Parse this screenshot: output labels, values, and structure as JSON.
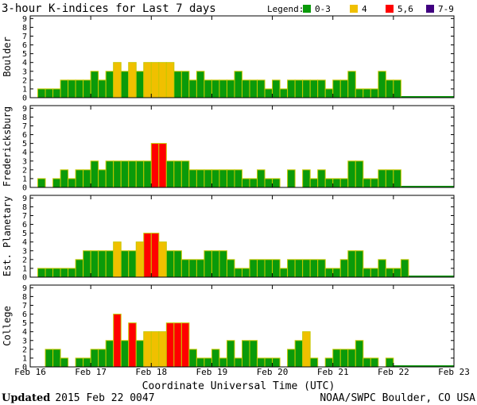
{
  "chart_data": {
    "type": "bar",
    "title": "3-hour K-indices for Last 7 days",
    "legend": {
      "label": "Legend:",
      "entries": [
        {
          "label": "0-3",
          "color": "#0a9a0a"
        },
        {
          "label": "4",
          "color": "#f0c000"
        },
        {
          "label": "5,6",
          "color": "#ff0000"
        },
        {
          "label": "7-9",
          "color": "#400080"
        }
      ]
    },
    "bar_outline_color": "#c8c800",
    "xlabel": "Coordinate Universal Time (UTC)",
    "x_ticks": [
      "Feb 16",
      "Feb 17",
      "Feb 18",
      "Feb 19",
      "Feb 20",
      "Feb 21",
      "Feb 22",
      "Feb 23"
    ],
    "ylim": [
      0,
      9
    ],
    "y_ticks": [
      0,
      1,
      2,
      3,
      4,
      5,
      6,
      7,
      8,
      9
    ],
    "interval_hours": 3,
    "series": [
      {
        "name": "Boulder",
        "values": [
          0,
          1,
          1,
          1,
          2,
          2,
          2,
          2,
          3,
          2,
          3,
          4,
          3,
          4,
          3,
          4,
          4,
          4,
          4,
          3,
          3,
          2,
          3,
          2,
          2,
          2,
          2,
          3,
          2,
          2,
          2,
          1,
          2,
          1,
          2,
          2,
          2,
          2,
          2,
          1,
          2,
          2,
          3,
          1,
          1,
          1,
          3,
          2,
          2
        ]
      },
      {
        "name": "Fredericksburg",
        "values": [
          0,
          1,
          0,
          1,
          2,
          1,
          2,
          2,
          3,
          2,
          3,
          3,
          3,
          3,
          3,
          3,
          5,
          5,
          3,
          3,
          3,
          2,
          2,
          2,
          2,
          2,
          2,
          2,
          1,
          1,
          2,
          1,
          1,
          0,
          2,
          0,
          2,
          1,
          2,
          1,
          1,
          1,
          3,
          3,
          1,
          1,
          2,
          2,
          2
        ]
      },
      {
        "name": "Est. Planetary",
        "values": [
          0,
          1,
          1,
          1,
          1,
          1,
          2,
          3,
          3,
          3,
          3,
          4,
          3,
          3,
          4,
          5,
          5,
          4,
          3,
          3,
          2,
          2,
          2,
          3,
          3,
          3,
          2,
          1,
          1,
          2,
          2,
          2,
          2,
          1,
          2,
          2,
          2,
          2,
          2,
          1,
          1,
          2,
          3,
          3,
          1,
          1,
          2,
          1,
          1,
          2
        ]
      },
      {
        "name": "College",
        "values": [
          0,
          0,
          2,
          2,
          1,
          0,
          1,
          1,
          2,
          2,
          3,
          6,
          3,
          5,
          3,
          4,
          4,
          4,
          5,
          5,
          5,
          2,
          1,
          1,
          2,
          1,
          3,
          1,
          3,
          3,
          1,
          1,
          1,
          0,
          2,
          3,
          4,
          1,
          0,
          1,
          2,
          2,
          2,
          3,
          1,
          1,
          0,
          1
        ]
      }
    ]
  },
  "footer": {
    "updated_label": "Updated",
    "updated_value": "2015 Feb 22 0047",
    "credit": "NOAA/SWPC Boulder, CO USA"
  }
}
